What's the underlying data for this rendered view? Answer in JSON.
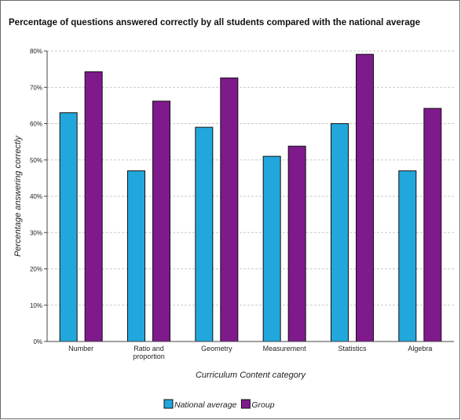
{
  "chart_data": {
    "type": "bar",
    "title": "Percentage of questions answered correctly by all students compared with the national average",
    "xlabel": "Curriculum Content category",
    "ylabel": "Percentage answering correctly",
    "categories": [
      "Number",
      "Ratio and proportion",
      "Geometry",
      "Measurement",
      "Statistics",
      "Algebra"
    ],
    "category_lines": [
      [
        "Number"
      ],
      [
        "Ratio and",
        "proportion"
      ],
      [
        "Geometry"
      ],
      [
        "Measurement"
      ],
      [
        "Statistics"
      ],
      [
        "Algebra"
      ]
    ],
    "series": [
      {
        "name": "National average",
        "color": "#22a7dc",
        "values": [
          63,
          47,
          59,
          51,
          60,
          47
        ]
      },
      {
        "name": "Group",
        "color": "#7f1a8c",
        "values": [
          74.3,
          66.2,
          72.6,
          53.8,
          79.1,
          64.2
        ]
      }
    ],
    "ylim": [
      0,
      80
    ],
    "yticks": [
      "0%",
      "10%",
      "20%",
      "30%",
      "40%",
      "50%",
      "60%",
      "70%",
      "80%"
    ],
    "grid": true,
    "legend_position": "bottom-center"
  }
}
